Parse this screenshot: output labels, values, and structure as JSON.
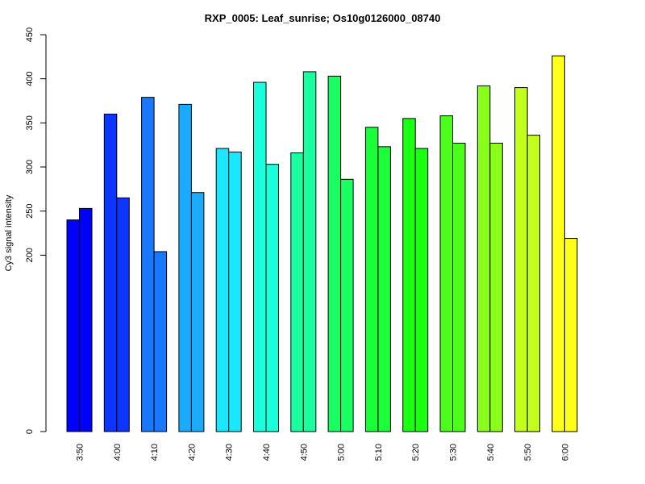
{
  "chart_data": {
    "type": "bar",
    "title": "RXP_0005: Leaf_sunrise; Os10g0126000_08740",
    "xlabel": "",
    "ylabel": "Cy3 signal intensity",
    "yticks": [
      0,
      200,
      250,
      300,
      350,
      400,
      450
    ],
    "ylim": [
      0,
      450
    ],
    "grid": false,
    "categories": [
      "3:50",
      "4:00",
      "4:10",
      "4:20",
      "4:30",
      "4:40",
      "4:50",
      "5:00",
      "5:10",
      "5:20",
      "5:30",
      "5:40",
      "5:50",
      "6:00"
    ],
    "colors": [
      "#0000ff",
      "#0d35ff",
      "#1a78ff",
      "#1aabff",
      "#1ae8ff",
      "#1affdc",
      "#1aff9f",
      "#1aff62",
      "#1aff3a",
      "#1aff12",
      "#4aff1a",
      "#89ff1a",
      "#c2ff1a",
      "#ffff1a"
    ],
    "series": [
      {
        "values": [
          240,
          360,
          379,
          371,
          321,
          396,
          316,
          403,
          345,
          355,
          358,
          392,
          390,
          426
        ]
      },
      {
        "values": [
          253,
          265,
          204,
          271,
          317,
          303,
          408,
          286,
          323,
          321,
          327,
          327,
          336,
          219
        ]
      }
    ]
  }
}
